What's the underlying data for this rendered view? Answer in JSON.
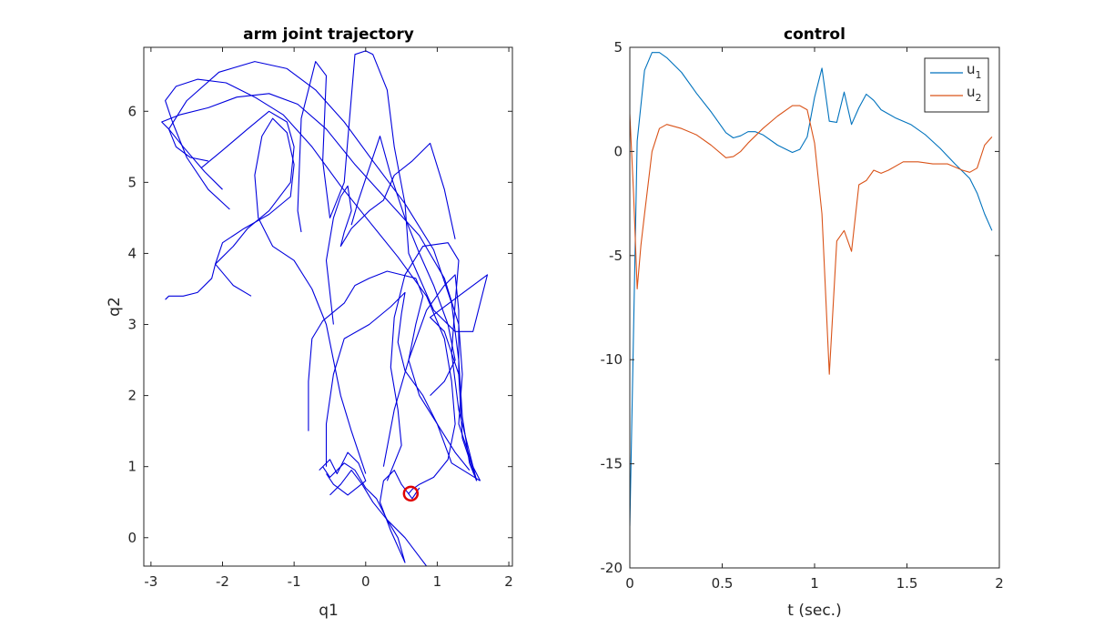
{
  "chart_data": [
    {
      "type": "line",
      "title": "arm joint trajectory",
      "xlabel": "q1",
      "ylabel": "q2",
      "xlim": [
        -3.1,
        2.05
      ],
      "ylim": [
        -0.4,
        6.9
      ],
      "xticks": [
        -3,
        -2,
        -1,
        0,
        1,
        2
      ],
      "yticks": [
        0,
        1,
        2,
        3,
        4,
        5,
        6
      ],
      "grid": false,
      "colors": {
        "trajectory": "#0000dd",
        "goal": "#e00000"
      },
      "goal_marker": {
        "x": 0.63,
        "y": 0.62
      },
      "series": [
        {
          "x": [
            -1.9,
            -2.2,
            -2.5,
            -2.7,
            -2.8,
            -2.65,
            -2.35,
            -1.95,
            -1.55,
            -1.15,
            -0.75,
            -0.35,
            0.05,
            0.45,
            0.85,
            1.1,
            1.2,
            1.25,
            1.15,
            0.95,
            0.75,
            0.65,
            0.6
          ],
          "y": [
            4.62,
            4.9,
            5.35,
            5.85,
            6.15,
            6.35,
            6.45,
            6.4,
            6.2,
            5.95,
            5.5,
            4.95,
            4.45,
            3.95,
            3.4,
            2.8,
            2.2,
            1.6,
            1.1,
            0.85,
            0.75,
            0.68,
            0.62
          ]
        },
        {
          "x": [
            -2.0,
            -2.25,
            -2.55,
            -2.75,
            -2.85,
            -2.6,
            -2.2,
            -1.8,
            -1.35,
            -0.95,
            -0.55,
            -0.15,
            0.3,
            0.75,
            1.1,
            1.3,
            1.35,
            1.3,
            1.5,
            1.6
          ],
          "y": [
            4.9,
            5.15,
            5.5,
            5.75,
            5.85,
            5.95,
            6.05,
            6.2,
            6.25,
            6.1,
            5.75,
            5.25,
            4.75,
            4.25,
            3.65,
            3.0,
            2.3,
            1.6,
            1.0,
            0.8
          ]
        },
        {
          "x": [
            -2.2,
            -2.45,
            -2.65,
            -2.75,
            -2.5,
            -2.05,
            -1.55,
            -1.1,
            -0.7,
            -0.3,
            0.1,
            0.55,
            0.95,
            1.2,
            1.3,
            1.35,
            1.45,
            1.55
          ],
          "y": [
            5.3,
            5.35,
            5.5,
            5.75,
            6.15,
            6.55,
            6.7,
            6.6,
            6.3,
            5.85,
            5.3,
            4.7,
            4.05,
            3.3,
            2.5,
            1.7,
            1.05,
            0.8
          ]
        },
        {
          "x": [
            -2.3,
            -2.0,
            -1.65,
            -1.35,
            -1.1,
            -1.0,
            -1.05,
            -1.35,
            -1.65,
            -1.85,
            -2.0,
            -2.1,
            -2.15,
            -2.35,
            -2.55,
            -2.75,
            -2.8
          ],
          "y": [
            5.2,
            5.45,
            5.75,
            6.0,
            5.85,
            5.5,
            5.0,
            4.6,
            4.35,
            4.1,
            3.95,
            3.85,
            3.65,
            3.45,
            3.4,
            3.4,
            3.35
          ]
        },
        {
          "x": [
            -1.6,
            -1.85,
            -2.1,
            -2.0,
            -1.7,
            -1.35,
            -1.05,
            -1.0,
            -1.1,
            -1.3,
            -1.45,
            -1.55,
            -1.5,
            -1.3,
            -1.0,
            -0.75,
            -0.55,
            -0.45,
            -0.35,
            -0.2,
            0.0
          ],
          "y": [
            3.4,
            3.55,
            3.85,
            4.15,
            4.35,
            4.55,
            4.8,
            5.25,
            5.7,
            5.9,
            5.65,
            5.1,
            4.5,
            4.1,
            3.9,
            3.5,
            3.0,
            2.5,
            2.0,
            1.5,
            0.9
          ]
        },
        {
          "x": [
            -0.8,
            -0.8,
            -0.75,
            -0.6,
            -0.3,
            -0.15,
            0.05,
            0.3,
            0.5,
            0.7,
            0.8,
            0.7,
            0.6,
            0.75,
            1.0,
            1.25,
            1.45
          ],
          "y": [
            1.5,
            2.2,
            2.8,
            3.05,
            3.3,
            3.55,
            3.65,
            3.75,
            3.7,
            3.65,
            3.4,
            3.0,
            2.5,
            2.0,
            1.6,
            1.2,
            0.95
          ]
        },
        {
          "x": [
            -0.55,
            -0.55,
            -0.45,
            -0.3,
            0.05,
            0.35,
            0.55,
            0.5,
            0.45,
            0.55,
            0.8,
            1.0,
            1.2,
            1.6
          ],
          "y": [
            1.0,
            1.6,
            2.3,
            2.8,
            3.0,
            3.25,
            3.45,
            3.15,
            2.75,
            2.35,
            2.0,
            1.6,
            1.05,
            0.8
          ]
        },
        {
          "x": [
            0.3,
            0.5,
            0.45,
            0.35,
            0.4,
            0.55,
            0.8,
            1.15,
            1.3,
            1.25,
            1.2,
            1.3,
            1.55
          ],
          "y": [
            0.8,
            1.3,
            1.8,
            2.4,
            3.1,
            3.7,
            4.1,
            4.15,
            3.9,
            3.3,
            2.6,
            1.8,
            0.8
          ]
        },
        {
          "x": [
            0.25,
            0.4,
            0.6,
            0.85,
            1.1,
            1.25,
            1.3,
            1.3,
            1.35,
            1.55
          ],
          "y": [
            1.0,
            1.8,
            2.5,
            3.2,
            3.55,
            3.7,
            3.2,
            2.3,
            1.4,
            0.8
          ]
        },
        {
          "x": [
            -0.9,
            -0.95,
            -0.9,
            -0.7,
            -0.55,
            -0.6,
            -0.5,
            -0.3,
            -0.15,
            0.0,
            0.1,
            0.3,
            0.4,
            0.55,
            0.6,
            0.95,
            1.25,
            1.5,
            1.7,
            0.9,
            1.1,
            1.3
          ],
          "y": [
            4.3,
            4.6,
            5.9,
            6.7,
            6.5,
            5.3,
            4.5,
            5.0,
            6.8,
            6.85,
            6.8,
            6.3,
            5.5,
            4.7,
            4.0,
            3.2,
            2.9,
            2.9,
            3.7,
            3.1,
            2.9,
            2.3
          ]
        },
        {
          "x": [
            -0.45,
            -0.55,
            -0.45,
            -0.35,
            -0.25,
            -0.2,
            -0.3,
            -0.35,
            -0.2,
            0.05,
            0.25,
            0.4,
            0.65,
            0.9,
            1.1,
            1.25
          ],
          "y": [
            3.0,
            3.9,
            4.5,
            4.8,
            4.95,
            4.6,
            4.3,
            4.1,
            4.35,
            4.6,
            4.75,
            5.1,
            5.3,
            5.55,
            4.9,
            4.2
          ]
        },
        {
          "x": [
            -0.2,
            -0.1,
            0.05,
            0.2,
            0.35,
            0.55,
            0.75,
            0.95,
            1.15,
            1.25,
            1.1,
            0.9
          ],
          "y": [
            4.4,
            4.75,
            5.2,
            5.65,
            5.1,
            4.5,
            4.0,
            3.55,
            3.0,
            2.5,
            2.2,
            2.0
          ]
        },
        {
          "x": [
            -0.6,
            -0.5,
            -0.3,
            -0.15,
            0.0,
            0.15,
            0.3,
            0.45,
            0.55,
            0.35,
            0.2,
            0.25,
            0.4,
            0.5,
            0.65,
            0.75
          ],
          "y": [
            1.0,
            0.85,
            1.05,
            0.95,
            0.7,
            0.55,
            0.25,
            0.0,
            -0.35,
            0.1,
            0.5,
            0.8,
            0.95,
            0.75,
            0.55,
            0.7
          ]
        },
        {
          "x": [
            -0.5,
            -0.35,
            -0.2,
            -0.05,
            0.1,
            0.3,
            0.55,
            0.7,
            0.85
          ],
          "y": [
            0.6,
            0.75,
            0.95,
            0.75,
            0.5,
            0.25,
            0.0,
            -0.2,
            -0.4
          ]
        },
        {
          "x": [
            -0.65,
            -0.5,
            -0.4,
            -0.25,
            -0.1,
            0.0,
            -0.25,
            -0.45,
            -0.55
          ],
          "y": [
            0.95,
            1.1,
            0.9,
            1.2,
            1.05,
            0.8,
            0.6,
            0.75,
            0.9
          ]
        }
      ]
    },
    {
      "type": "line",
      "title": "control",
      "xlabel": "t (sec.)",
      "ylabel": "",
      "xlim": [
        0,
        2
      ],
      "ylim": [
        -20,
        5
      ],
      "xticks": [
        0,
        0.5,
        1,
        1.5,
        2
      ],
      "yticks": [
        -20,
        -15,
        -10,
        -5,
        0,
        5
      ],
      "xtick_labels": [
        "0",
        "0.5",
        "1",
        "1.5",
        "2"
      ],
      "ytick_labels": [
        "-20",
        "-15",
        "-10",
        "-5",
        "0",
        "5"
      ],
      "grid": false,
      "legend_placement": "top-right",
      "series": [
        {
          "name": "u",
          "name_sub": "1",
          "color": "#0072bd",
          "x": [
            0.0,
            0.04,
            0.08,
            0.12,
            0.16,
            0.2,
            0.28,
            0.36,
            0.44,
            0.52,
            0.56,
            0.6,
            0.64,
            0.68,
            0.72,
            0.8,
            0.88,
            0.92,
            0.96,
            1.0,
            1.04,
            1.08,
            1.12,
            1.16,
            1.2,
            1.24,
            1.28,
            1.32,
            1.36,
            1.44,
            1.52,
            1.6,
            1.68,
            1.76,
            1.84,
            1.88,
            1.92,
            1.96
          ],
          "y": [
            -18.0,
            0.5,
            3.9,
            4.75,
            4.75,
            4.5,
            3.8,
            2.8,
            1.9,
            0.9,
            0.65,
            0.75,
            0.95,
            0.95,
            0.8,
            0.3,
            -0.05,
            0.1,
            0.7,
            2.6,
            4.0,
            1.45,
            1.4,
            2.85,
            1.3,
            2.1,
            2.75,
            2.45,
            2.0,
            1.6,
            1.3,
            0.8,
            0.15,
            -0.6,
            -1.3,
            -2.0,
            -3.0,
            -3.8
          ]
        },
        {
          "name": "u",
          "name_sub": "2",
          "color": "#d95319",
          "x": [
            0.0,
            0.02,
            0.04,
            0.06,
            0.08,
            0.12,
            0.16,
            0.2,
            0.28,
            0.36,
            0.44,
            0.52,
            0.56,
            0.6,
            0.64,
            0.72,
            0.8,
            0.88,
            0.92,
            0.96,
            1.0,
            1.04,
            1.08,
            1.12,
            1.16,
            1.2,
            1.24,
            1.28,
            1.32,
            1.36,
            1.4,
            1.48,
            1.56,
            1.64,
            1.72,
            1.8,
            1.84,
            1.88,
            1.92,
            1.96
          ],
          "y": [
            1.8,
            -2.0,
            -6.6,
            -4.5,
            -3.0,
            0.0,
            1.1,
            1.3,
            1.1,
            0.8,
            0.3,
            -0.3,
            -0.25,
            0.0,
            0.4,
            1.1,
            1.7,
            2.2,
            2.2,
            2.0,
            0.4,
            -3.0,
            -10.7,
            -4.3,
            -3.8,
            -4.8,
            -1.6,
            -1.4,
            -0.9,
            -1.05,
            -0.9,
            -0.5,
            -0.5,
            -0.6,
            -0.6,
            -0.9,
            -1.0,
            -0.8,
            0.3,
            0.7
          ]
        }
      ]
    }
  ]
}
